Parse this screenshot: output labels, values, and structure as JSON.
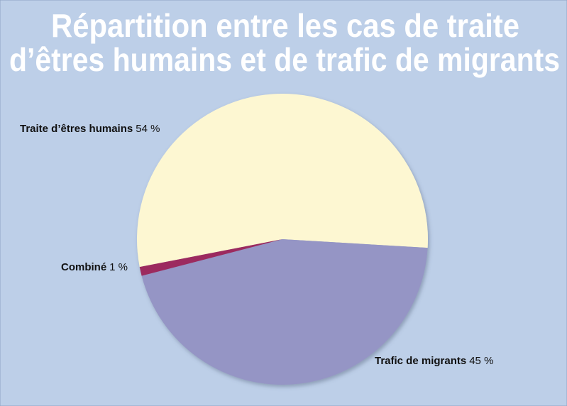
{
  "chart_data": {
    "type": "pie",
    "title": [
      "Répartition entre les cas de traite",
      "d’êtres humains et de trafic de migrants"
    ],
    "categories": [
      "Traite d’êtres humains",
      "Trafic de migrants",
      "Combiné"
    ],
    "values": [
      54,
      45,
      1
    ],
    "value_labels": [
      "54 %",
      "45 %",
      "1 %"
    ],
    "colors": [
      "#fdf7d2",
      "#9595c5",
      "#9c2b5f"
    ]
  }
}
